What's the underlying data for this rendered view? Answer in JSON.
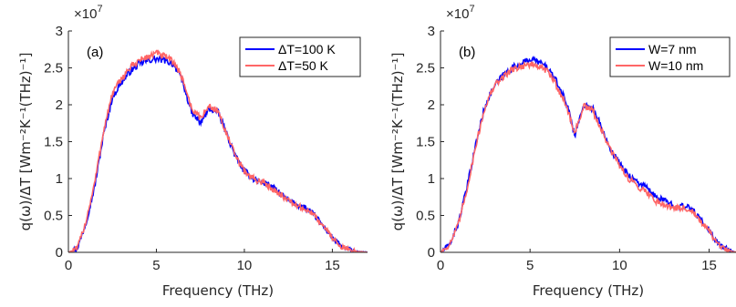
{
  "chart_data": [
    {
      "type": "line",
      "panel_label": "(a)",
      "xlabel": "Frequency (THz)",
      "ylabel": "q(ω)/ΔT [Wm⁻²K⁻¹(THz)⁻¹]",
      "xlim": [
        0,
        17
      ],
      "ylim": [
        0,
        3
      ],
      "y_multiplier": "×10^7",
      "xticks": [
        0,
        5,
        10,
        15
      ],
      "yticks": [
        0,
        0.5,
        1,
        1.5,
        2,
        2.5,
        3
      ],
      "legend_position": "top-right",
      "grid": false,
      "x": [
        0,
        0.5,
        1,
        1.5,
        2,
        2.5,
        3,
        3.5,
        4,
        4.5,
        5,
        5.5,
        6,
        6.5,
        7,
        7.5,
        8,
        8.5,
        9,
        9.5,
        10,
        10.5,
        11,
        11.5,
        12,
        12.5,
        13,
        13.5,
        14,
        14.5,
        15,
        15.5,
        16,
        16.5,
        17
      ],
      "series": [
        {
          "name": "ΔT=100 K",
          "color": "#0000ff",
          "values": [
            0,
            0.05,
            0.4,
            0.9,
            1.6,
            2.1,
            2.3,
            2.45,
            2.55,
            2.6,
            2.62,
            2.6,
            2.55,
            2.3,
            1.9,
            1.75,
            1.95,
            1.9,
            1.6,
            1.3,
            1.1,
            1.0,
            0.95,
            0.9,
            0.8,
            0.7,
            0.65,
            0.6,
            0.5,
            0.35,
            0.2,
            0.08,
            0.03,
            0.01,
            0
          ]
        },
        {
          "name": "ΔT=50 K",
          "color": "#ff6666",
          "values": [
            0,
            0.05,
            0.42,
            0.95,
            1.65,
            2.15,
            2.35,
            2.5,
            2.6,
            2.65,
            2.7,
            2.65,
            2.58,
            2.35,
            1.95,
            1.82,
            1.98,
            1.92,
            1.6,
            1.3,
            1.1,
            1.0,
            0.95,
            0.88,
            0.8,
            0.7,
            0.63,
            0.58,
            0.5,
            0.35,
            0.2,
            0.08,
            0.03,
            0.01,
            0
          ]
        }
      ]
    },
    {
      "type": "line",
      "panel_label": "(b)",
      "xlabel": "Frequency (THz)",
      "ylabel": "q(ω)/ΔT [Wm⁻²K⁻¹(THz)⁻¹]",
      "xlim": [
        0,
        16.5
      ],
      "ylim": [
        0,
        3
      ],
      "y_multiplier": "×10^7",
      "xticks": [
        0,
        5,
        10,
        15
      ],
      "yticks": [
        0,
        0.5,
        1,
        1.5,
        2,
        2.5,
        3
      ],
      "legend_position": "top-right",
      "grid": false,
      "x": [
        0,
        0.5,
        1,
        1.5,
        2,
        2.5,
        3,
        3.5,
        4,
        4.5,
        5,
        5.5,
        6,
        6.5,
        7,
        7.5,
        8,
        8.5,
        9,
        9.5,
        10,
        10.5,
        11,
        11.5,
        12,
        12.5,
        13,
        13.5,
        14,
        14.5,
        15,
        15.5,
        16,
        16.5
      ],
      "series": [
        {
          "name": "W=7 nm",
          "color": "#0000ff",
          "values": [
            0,
            0.1,
            0.4,
            0.9,
            1.5,
            2.0,
            2.25,
            2.4,
            2.5,
            2.55,
            2.62,
            2.58,
            2.5,
            2.3,
            2.05,
            1.6,
            2.0,
            1.95,
            1.7,
            1.4,
            1.2,
            1.05,
            0.95,
            0.88,
            0.75,
            0.7,
            0.65,
            0.62,
            0.6,
            0.45,
            0.3,
            0.12,
            0.04,
            0
          ]
        },
        {
          "name": "W=10 nm",
          "color": "#ff6666",
          "values": [
            0,
            0.1,
            0.38,
            0.88,
            1.48,
            1.98,
            2.25,
            2.38,
            2.48,
            2.52,
            2.55,
            2.52,
            2.45,
            2.25,
            2.0,
            1.62,
            1.98,
            1.92,
            1.65,
            1.38,
            1.18,
            1.0,
            0.9,
            0.82,
            0.7,
            0.65,
            0.6,
            0.6,
            0.58,
            0.42,
            0.28,
            0.1,
            0.03,
            0
          ]
        }
      ]
    }
  ]
}
